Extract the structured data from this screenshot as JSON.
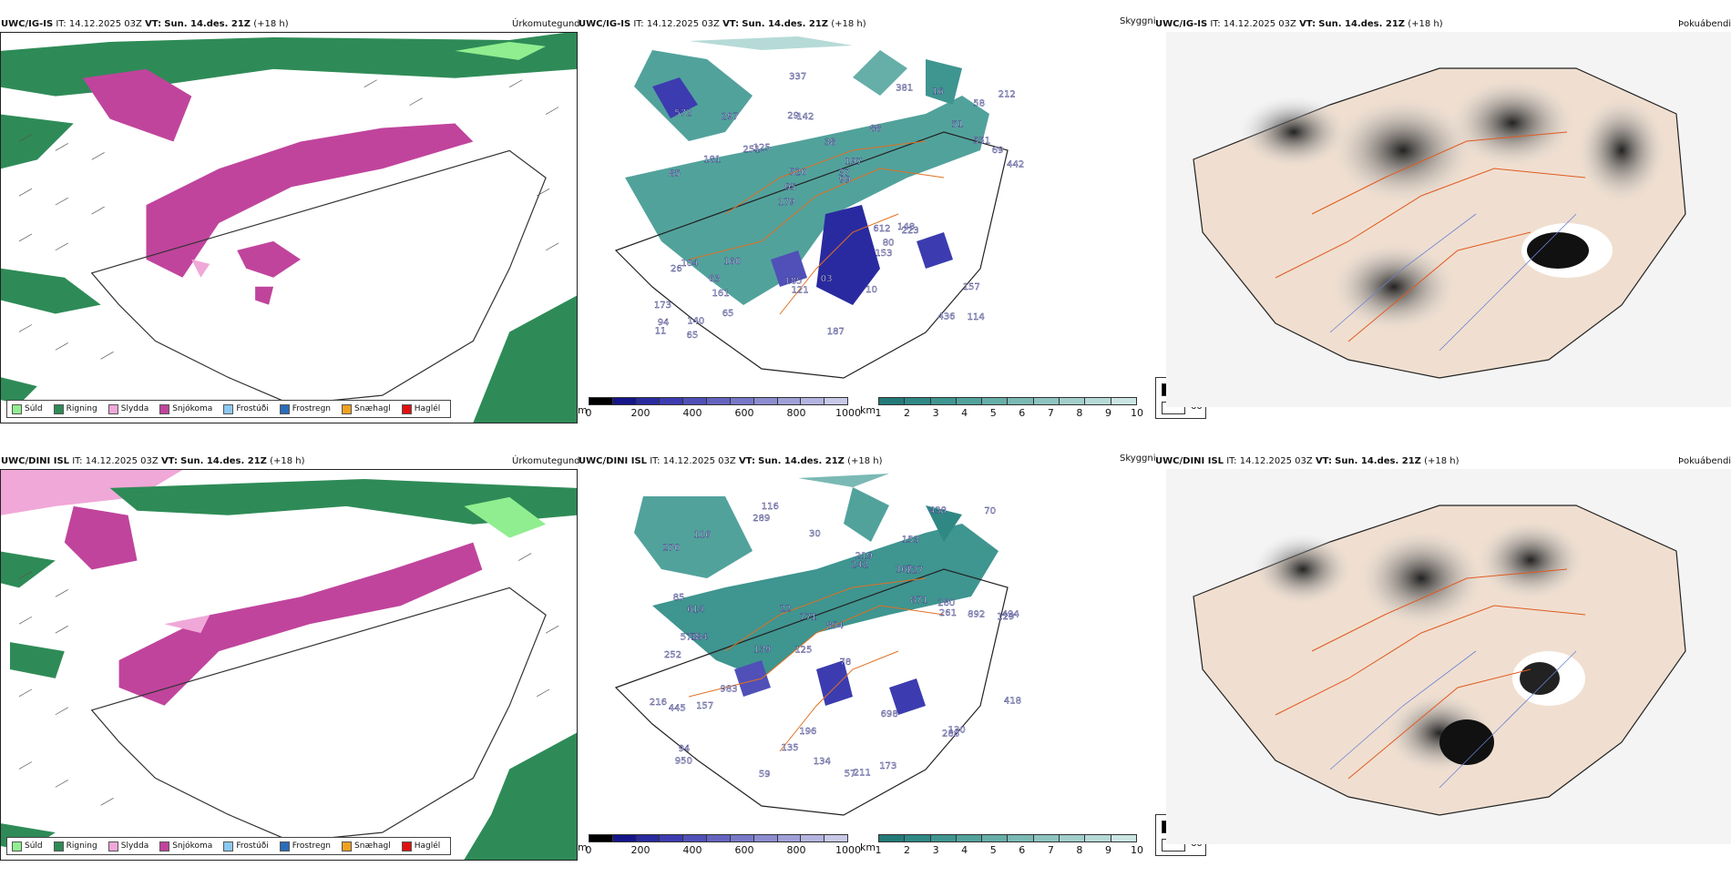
{
  "rows": [
    {
      "model": "UWC/IG-IS",
      "it_label": "IT:",
      "it_value": "14.12.2025 03Z",
      "vt_label": "VT:",
      "vt_value": "Sun. 14.des. 21Z",
      "lead": "(+18 h)",
      "precip_label": "Úrkomutegund",
      "vis_label": "Skyggni",
      "fog_label": "Þokuábendi",
      "peak_labels": [
        "114",
        "85",
        "58",
        "179",
        "88",
        "140",
        "29",
        "38",
        "104",
        "125",
        "173",
        "161",
        "142",
        "197",
        "223",
        "572",
        "337",
        "442",
        "612",
        "551",
        "95",
        "185",
        "520",
        "297",
        "381",
        "160",
        "436",
        "157",
        "148",
        "187",
        "251",
        "181",
        "153",
        "65",
        "69",
        "37",
        "94",
        "121",
        "99",
        "26",
        "51",
        "212",
        "80",
        "10",
        "63",
        "65",
        "11",
        "03",
        "16"
      ]
    },
    {
      "model": "UWC/DINI ISL",
      "it_label": "IT:",
      "it_value": "14.12.2025 03Z",
      "vt_label": "VT:",
      "vt_value": "Sun. 14.des. 21Z",
      "lead": "(+18 h)",
      "precip_label": "Úrkomutegund",
      "vis_label": "Skyggni",
      "fog_label": "Þokuábendi",
      "peak_labels": [
        "116",
        "153",
        "129",
        "125",
        "78",
        "184",
        "270",
        "167",
        "252",
        "242",
        "854",
        "950",
        "289",
        "139",
        "57",
        "211",
        "196",
        "438",
        "871",
        "983",
        "614",
        "573",
        "494",
        "892",
        "216",
        "85",
        "771",
        "261",
        "130",
        "445",
        "288",
        "219",
        "157",
        "22",
        "698",
        "418",
        "280",
        "135",
        "70",
        "30",
        "94",
        "59",
        "173",
        "116",
        "134",
        "127"
      ]
    }
  ],
  "precip_legend": [
    {
      "label": "Súld",
      "color": "#90ee90"
    },
    {
      "label": "Rigning",
      "color": "#2e8b57"
    },
    {
      "label": "Slydda",
      "color": "#f0a8d8"
    },
    {
      "label": "Snjókoma",
      "color": "#c0449c"
    },
    {
      "label": "Frostúði",
      "color": "#8cc8f0"
    },
    {
      "label": "Frostregn",
      "color": "#2a6cb8"
    },
    {
      "label": "Snæhagl",
      "color": "#f0a020"
    },
    {
      "label": "Haglél",
      "color": "#e01010"
    }
  ],
  "elev_bar": {
    "unit": "m",
    "ticks": [
      "0",
      "200",
      "400",
      "600",
      "800",
      "1000"
    ],
    "colors": [
      "#000000",
      "#15158a",
      "#2a2aa0",
      "#3c3cb0",
      "#5050b8",
      "#6464c0",
      "#7878c8",
      "#8c8cd0",
      "#a0a0d8",
      "#b4b4e0",
      "#c8c8e8"
    ]
  },
  "cloud_bar": {
    "unit": "km",
    "ticks": [
      "1",
      "2",
      "3",
      "4",
      "5",
      "6",
      "7",
      "8",
      "9",
      "10"
    ],
    "colors": [
      "#237a78",
      "#2f8884",
      "#3f9590",
      "#52a29c",
      "#66aea8",
      "#7ab9b4",
      "#8ec4c0",
      "#a2cfcb",
      "#b6dad7",
      "#cae5e2"
    ]
  },
  "vis_legend": [
    {
      "label": "0",
      "color": "#000000"
    },
    {
      "label": "60",
      "color": "#ffffff"
    }
  ]
}
